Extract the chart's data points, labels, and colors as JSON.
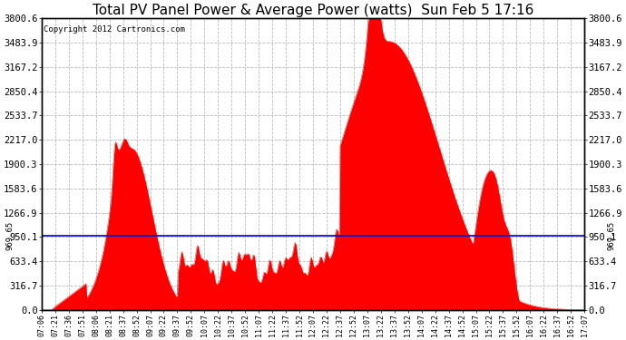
{
  "title": "Total PV Panel Power & Average Power (watts)  Sun Feb 5 17:16",
  "copyright": "Copyright 2012 Cartronics.com",
  "average_power": 969.65,
  "y_max": 3800.6,
  "y_ticks": [
    0.0,
    316.7,
    633.4,
    950.1,
    1266.9,
    1583.6,
    1900.3,
    2217.0,
    2533.7,
    2850.4,
    3167.2,
    3483.9,
    3800.6
  ],
  "fill_color": "#FF0000",
  "line_color": "#0000CC",
  "background_color": "#FFFFFF",
  "grid_color": "#BBBBBB",
  "border_color": "#000000",
  "avg_label": "969.65",
  "x_labels": [
    "07:06",
    "07:21",
    "07:36",
    "07:51",
    "08:06",
    "08:21",
    "08:37",
    "08:52",
    "09:07",
    "09:22",
    "09:37",
    "09:52",
    "10:07",
    "10:22",
    "10:37",
    "10:52",
    "11:07",
    "11:22",
    "11:37",
    "11:52",
    "12:07",
    "12:22",
    "12:37",
    "12:52",
    "13:07",
    "13:22",
    "13:37",
    "13:52",
    "14:07",
    "14:22",
    "14:37",
    "14:52",
    "15:07",
    "15:22",
    "15:37",
    "15:52",
    "16:07",
    "16:22",
    "16:37",
    "16:52",
    "17:07"
  ],
  "title_fontsize": 11,
  "copyright_fontsize": 6.5,
  "tick_fontsize": 7.5,
  "avg_fontsize": 6.5
}
